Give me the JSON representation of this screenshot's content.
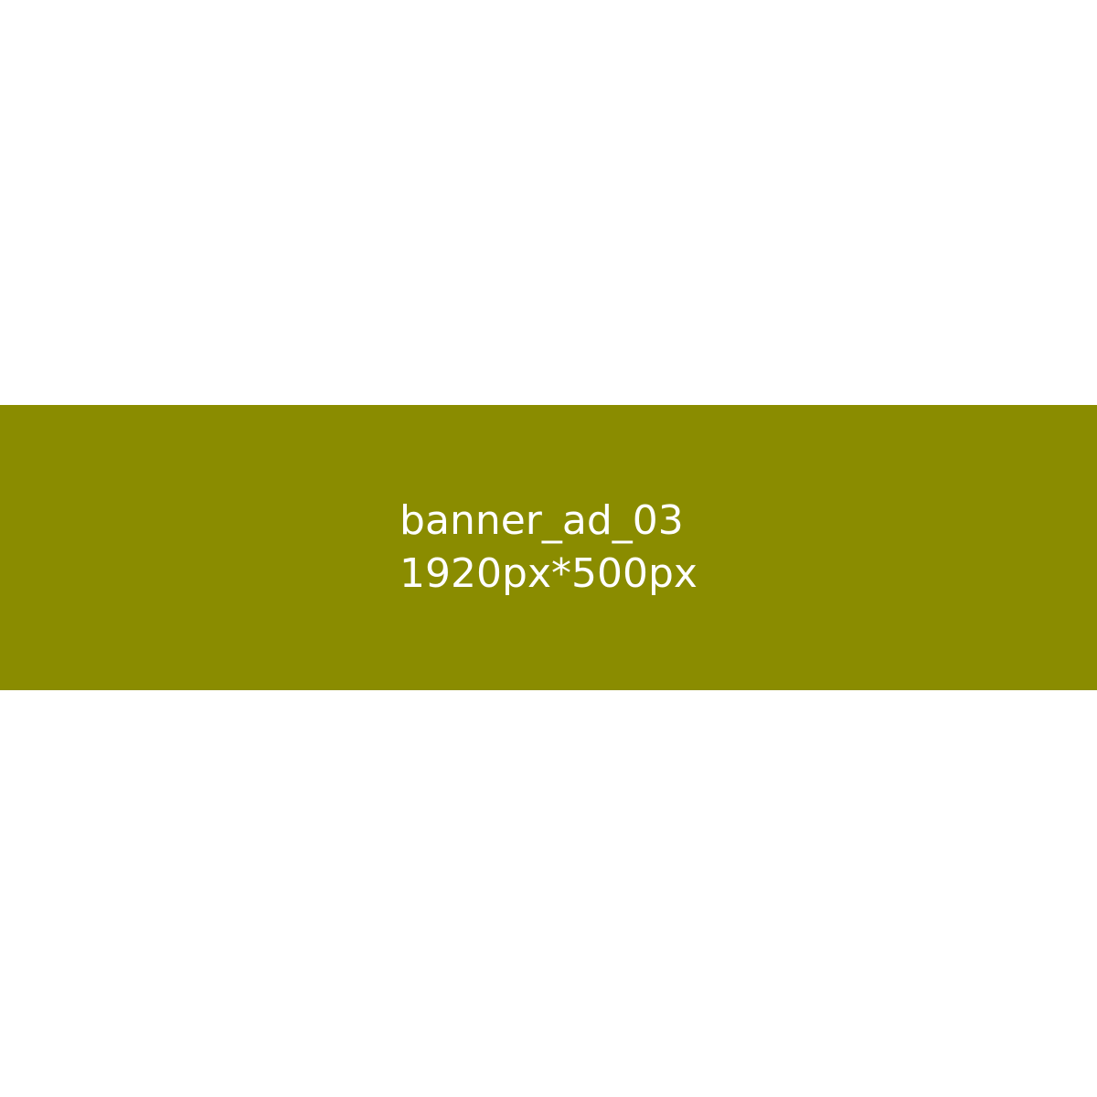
{
  "banner": {
    "name": "banner_ad_03",
    "dimensions": "1920px*500px",
    "background_color": "#8a8c00",
    "text_color": "#ffffff"
  },
  "page": {
    "background_color": "#ffffff"
  }
}
